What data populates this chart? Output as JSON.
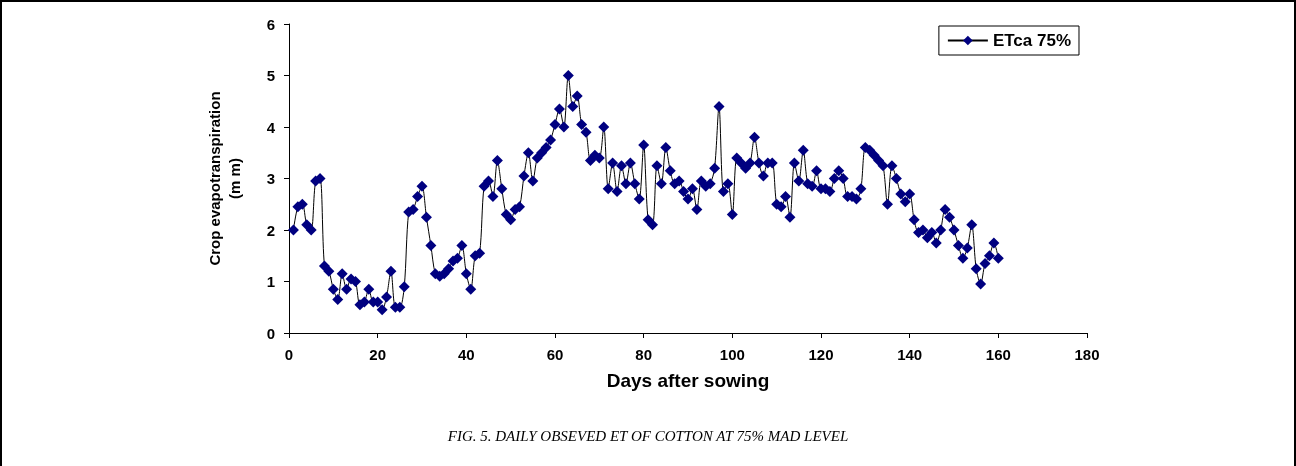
{
  "chart_data": {
    "type": "line",
    "xlabel": "Days after sowing",
    "ylabel": "Crop evapotranspiration\n(m m)",
    "x": [
      1,
      2,
      3,
      4,
      5,
      6,
      7,
      8,
      9,
      10,
      11,
      12,
      13,
      14,
      15,
      16,
      17,
      18,
      19,
      20,
      21,
      22,
      23,
      24,
      25,
      26,
      27,
      28,
      29,
      30,
      31,
      32,
      33,
      34,
      35,
      36,
      37,
      38,
      39,
      40,
      41,
      42,
      43,
      44,
      45,
      46,
      47,
      48,
      49,
      50,
      51,
      52,
      53,
      54,
      55,
      56,
      57,
      58,
      59,
      60,
      61,
      62,
      63,
      64,
      65,
      66,
      67,
      68,
      69,
      70,
      71,
      72,
      73,
      74,
      75,
      76,
      77,
      78,
      79,
      80,
      81,
      82,
      83,
      84,
      85,
      86,
      87,
      88,
      89,
      90,
      91,
      92,
      93,
      94,
      95,
      96,
      97,
      98,
      99,
      100,
      101,
      102,
      103,
      104,
      105,
      106,
      107,
      108,
      109,
      110,
      111,
      112,
      113,
      114,
      115,
      116,
      117,
      118,
      119,
      120,
      121,
      122,
      123,
      124,
      125,
      126,
      127,
      128,
      129,
      130,
      131,
      132,
      133,
      134,
      135,
      136,
      137,
      138,
      139,
      140,
      141,
      142,
      143,
      144,
      145,
      146,
      147,
      148,
      149,
      150,
      151,
      152,
      153,
      154,
      155,
      156,
      157,
      158,
      159,
      160
    ],
    "series": [
      {
        "name": "ETca 75%",
        "color": "#000080",
        "values": [
          2.0,
          2.45,
          2.5,
          2.1,
          2.0,
          2.95,
          3.0,
          1.3,
          1.2,
          0.85,
          0.65,
          1.15,
          0.85,
          1.05,
          1.0,
          0.55,
          0.6,
          0.85,
          0.6,
          0.6,
          0.45,
          0.7,
          1.2,
          0.5,
          0.5,
          0.9,
          2.35,
          2.4,
          2.65,
          2.85,
          2.25,
          1.7,
          1.15,
          1.1,
          1.15,
          1.25,
          1.4,
          1.45,
          1.7,
          1.15,
          0.85,
          1.5,
          1.55,
          2.85,
          2.95,
          2.65,
          3.35,
          2.8,
          2.3,
          2.2,
          2.4,
          2.45,
          3.05,
          3.5,
          2.95,
          3.4,
          3.5,
          3.6,
          3.75,
          4.05,
          4.35,
          4.0,
          5.0,
          4.4,
          4.6,
          4.05,
          3.9,
          3.35,
          3.45,
          3.4,
          4.0,
          2.8,
          3.3,
          2.75,
          3.25,
          2.9,
          3.3,
          2.9,
          2.6,
          3.65,
          2.2,
          2.1,
          3.25,
          2.9,
          3.6,
          3.15,
          2.9,
          2.95,
          2.75,
          2.6,
          2.8,
          2.4,
          2.95,
          2.85,
          2.9,
          3.2,
          4.4,
          2.75,
          2.9,
          2.3,
          3.4,
          3.3,
          3.2,
          3.3,
          3.8,
          3.3,
          3.05,
          3.3,
          3.3,
          2.5,
          2.45,
          2.65,
          2.25,
          3.3,
          2.95,
          3.55,
          2.9,
          2.85,
          3.15,
          2.8,
          2.8,
          2.75,
          3.0,
          3.15,
          3.0,
          2.65,
          2.65,
          2.6,
          2.8,
          3.6,
          3.55,
          3.45,
          3.35,
          3.25,
          2.5,
          3.25,
          3.0,
          2.7,
          2.55,
          2.7,
          2.2,
          1.95,
          2.0,
          1.85,
          1.95,
          1.75,
          2.0,
          2.4,
          2.25,
          2.0,
          1.7,
          1.45,
          1.65,
          2.1,
          1.25,
          0.95,
          1.35,
          1.5,
          1.75,
          1.45
        ]
      }
    ],
    "xlim": [
      0,
      180
    ],
    "xticks": [
      0,
      20,
      40,
      60,
      80,
      100,
      120,
      140,
      160,
      180
    ],
    "ylim": [
      0,
      6
    ],
    "yticks": [
      0,
      1,
      2,
      3,
      4,
      5,
      6
    ],
    "grid": false,
    "legend": "top right",
    "marker": "diamond",
    "line_style": "solid",
    "annotations": [
      "FIG. 5. DAILY OBSEVED ET OF COTTON AT 75% MAD LEVEL"
    ]
  }
}
